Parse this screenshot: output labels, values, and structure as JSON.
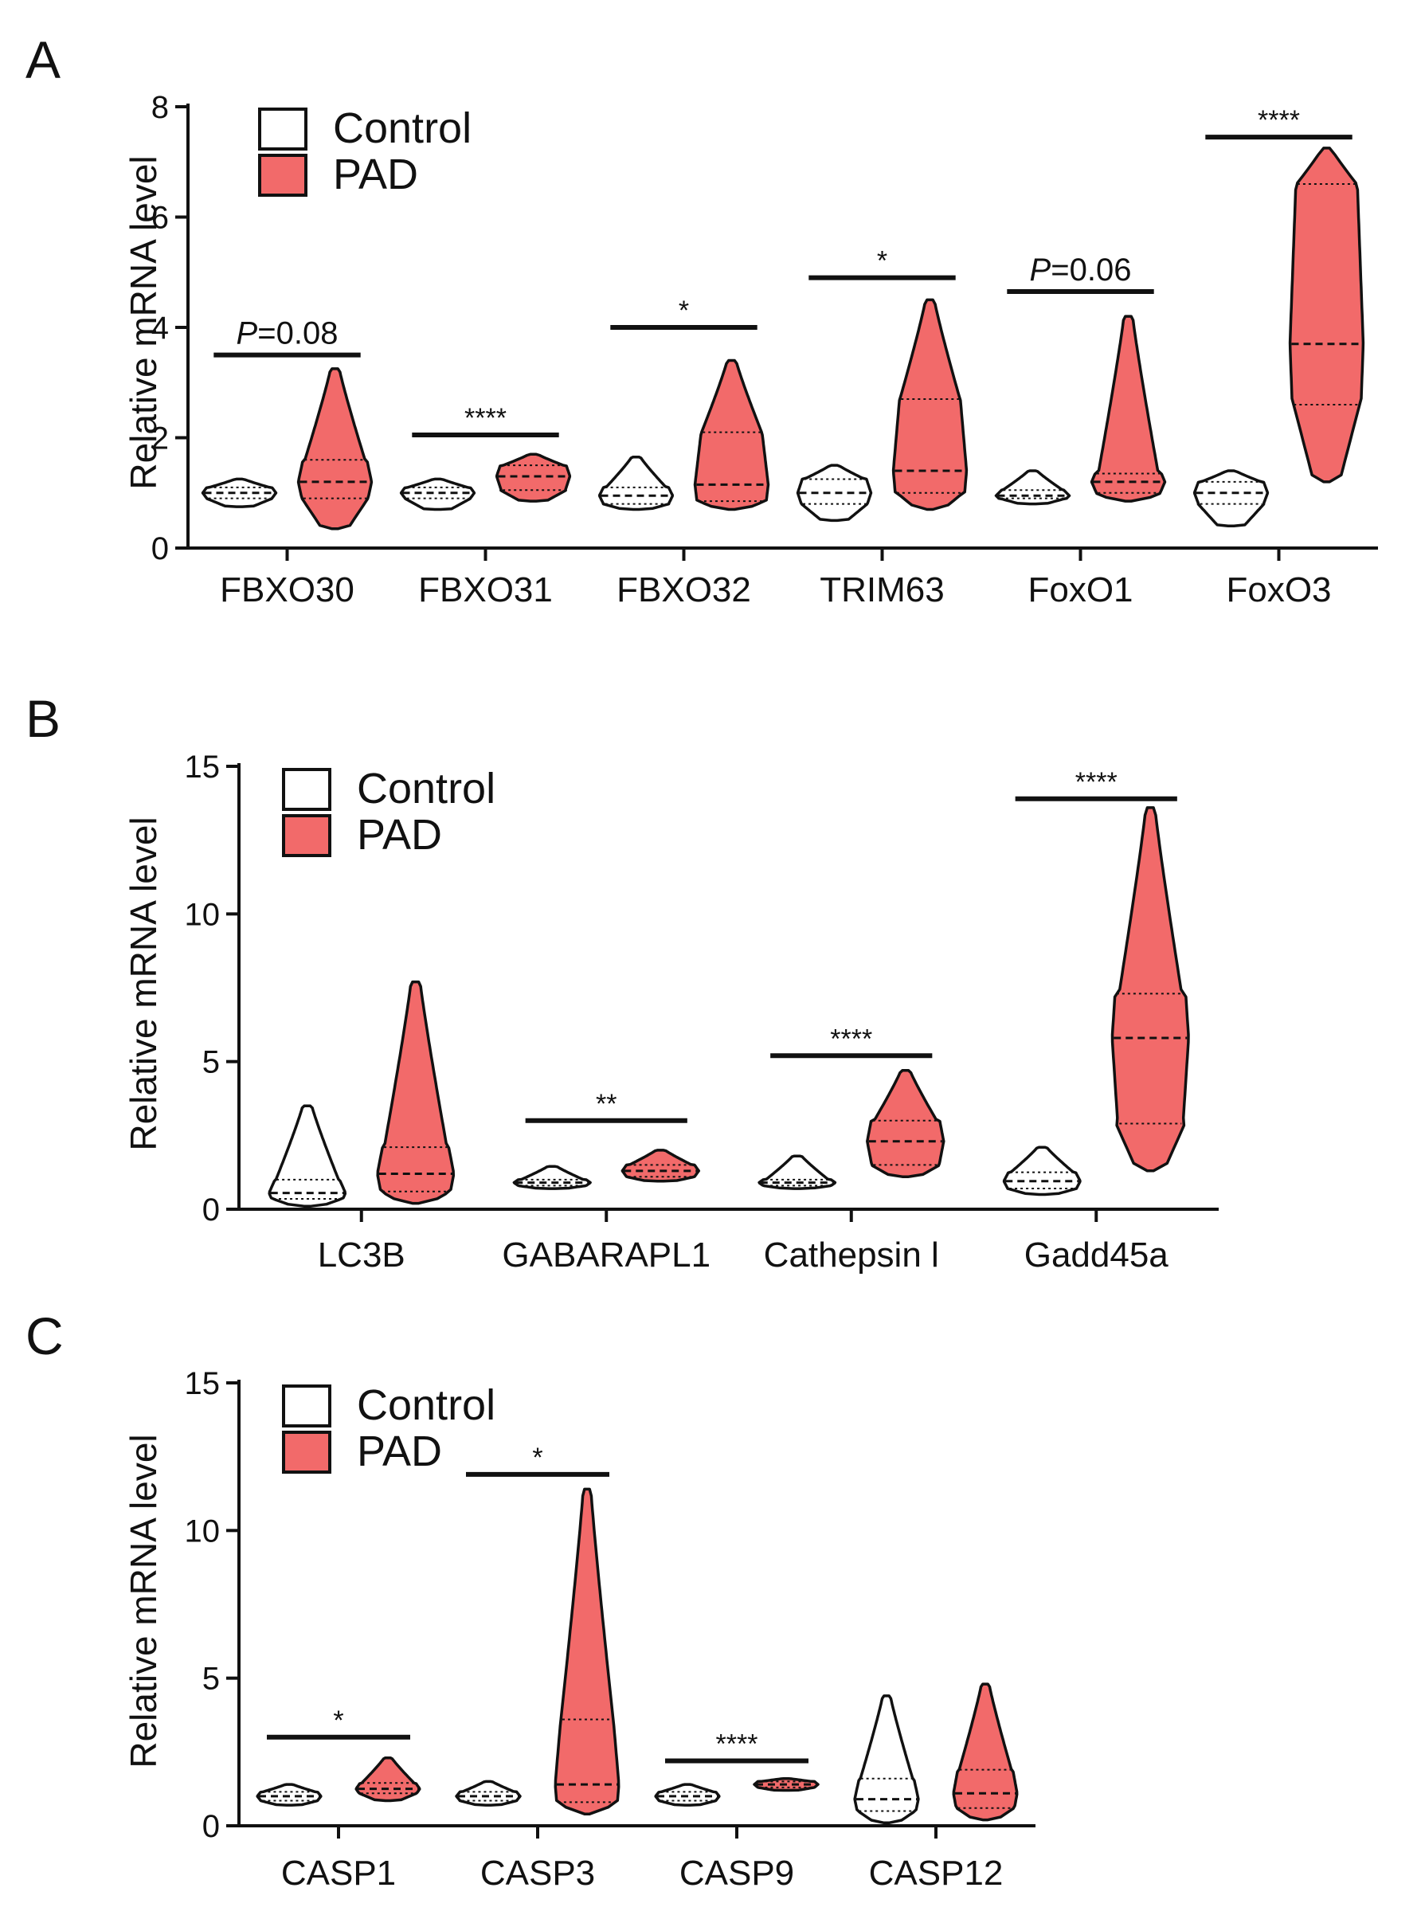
{
  "colors": {
    "control_fill": "#ffffff",
    "pad_fill": "#f26a6a",
    "outline": "#111111"
  },
  "legend": {
    "control_label": "Control",
    "pad_label": "PAD"
  },
  "chart_data": [
    {
      "panel": "A",
      "type": "violin",
      "ylabel": "Relative mRNA level",
      "ylim": [
        0,
        8
      ],
      "yticks": [
        0,
        2,
        4,
        6,
        8
      ],
      "ytick_labels": [
        "0",
        "2",
        "4",
        "6",
        "8"
      ],
      "categories": [
        "FBXO30",
        "FBXO31",
        "FBXO32",
        "TRIM63",
        "FoxO1",
        "FoxO3"
      ],
      "series": [
        {
          "name": "Control",
          "min": [
            0.75,
            0.7,
            0.7,
            0.5,
            0.8,
            0.4
          ],
          "max": [
            1.25,
            1.25,
            1.65,
            1.5,
            1.4,
            1.4
          ],
          "q1": [
            0.9,
            0.9,
            0.8,
            0.8,
            0.9,
            0.8
          ],
          "median": [
            1.0,
            1.0,
            0.95,
            1.0,
            0.95,
            1.0
          ],
          "q3": [
            1.1,
            1.1,
            1.1,
            1.25,
            1.05,
            1.2
          ]
        },
        {
          "name": "PAD",
          "min": [
            0.35,
            0.85,
            0.7,
            0.7,
            0.85,
            1.2
          ],
          "max": [
            3.25,
            1.7,
            3.4,
            4.5,
            4.2,
            7.25
          ],
          "q1": [
            0.9,
            1.05,
            0.85,
            1.0,
            1.0,
            2.6
          ],
          "median": [
            1.2,
            1.3,
            1.15,
            1.4,
            1.2,
            3.7
          ],
          "q3": [
            1.6,
            1.5,
            2.1,
            2.7,
            1.35,
            6.6
          ]
        }
      ],
      "significance": [
        "P=0.08",
        "****",
        "*",
        "*",
        "P=0.06",
        "****"
      ],
      "sig_y": [
        3.5,
        2.05,
        4.0,
        4.9,
        4.65,
        7.45
      ]
    },
    {
      "panel": "B",
      "type": "violin",
      "ylabel": "Relative mRNA level",
      "ylim": [
        0,
        15
      ],
      "yticks": [
        0,
        5,
        10,
        15
      ],
      "ytick_labels": [
        "0",
        "5",
        "10",
        "15"
      ],
      "categories": [
        "LC3B",
        "GABARAPL1",
        "Cathepsin l",
        "Gadd45a"
      ],
      "series": [
        {
          "name": "Control",
          "min": [
            0.1,
            0.7,
            0.7,
            0.5
          ],
          "max": [
            3.5,
            1.45,
            1.8,
            2.1
          ],
          "q1": [
            0.35,
            0.8,
            0.8,
            0.7
          ],
          "median": [
            0.55,
            0.9,
            0.9,
            0.95
          ],
          "q3": [
            1.0,
            1.0,
            1.0,
            1.25
          ]
        },
        {
          "name": "PAD",
          "min": [
            0.2,
            0.95,
            1.1,
            1.3
          ],
          "max": [
            7.7,
            2.0,
            4.7,
            13.6
          ],
          "q1": [
            0.6,
            1.1,
            1.5,
            2.9
          ],
          "median": [
            1.2,
            1.3,
            2.3,
            5.8
          ],
          "q3": [
            2.1,
            1.5,
            3.0,
            7.3
          ]
        }
      ],
      "significance": [
        "",
        "**",
        "****",
        "****"
      ],
      "sig_y": [
        0,
        3.0,
        5.2,
        13.9
      ]
    },
    {
      "panel": "C",
      "type": "violin",
      "ylabel": "Relative mRNA level",
      "ylim": [
        0,
        15
      ],
      "yticks": [
        0,
        5,
        10,
        15
      ],
      "ytick_labels": [
        "0",
        "5",
        "10",
        "15"
      ],
      "categories": [
        "CASP1",
        "CASP3",
        "CASP9",
        "CASP12"
      ],
      "series": [
        {
          "name": "Control",
          "min": [
            0.7,
            0.7,
            0.7,
            0.1
          ],
          "max": [
            1.4,
            1.5,
            1.4,
            4.4
          ],
          "q1": [
            0.85,
            0.85,
            0.85,
            0.5
          ],
          "median": [
            1.0,
            1.0,
            1.0,
            0.9
          ],
          "q3": [
            1.15,
            1.15,
            1.15,
            1.6
          ]
        },
        {
          "name": "PAD",
          "min": [
            0.85,
            0.4,
            1.2,
            0.2
          ],
          "max": [
            2.3,
            11.4,
            1.6,
            4.8
          ],
          "q1": [
            1.1,
            0.8,
            1.3,
            0.6
          ],
          "median": [
            1.25,
            1.4,
            1.4,
            1.1
          ],
          "q3": [
            1.45,
            3.6,
            1.5,
            1.9
          ]
        }
      ],
      "significance": [
        "*",
        "*",
        "****",
        ""
      ],
      "sig_y": [
        3.0,
        11.9,
        2.2,
        0
      ]
    }
  ]
}
